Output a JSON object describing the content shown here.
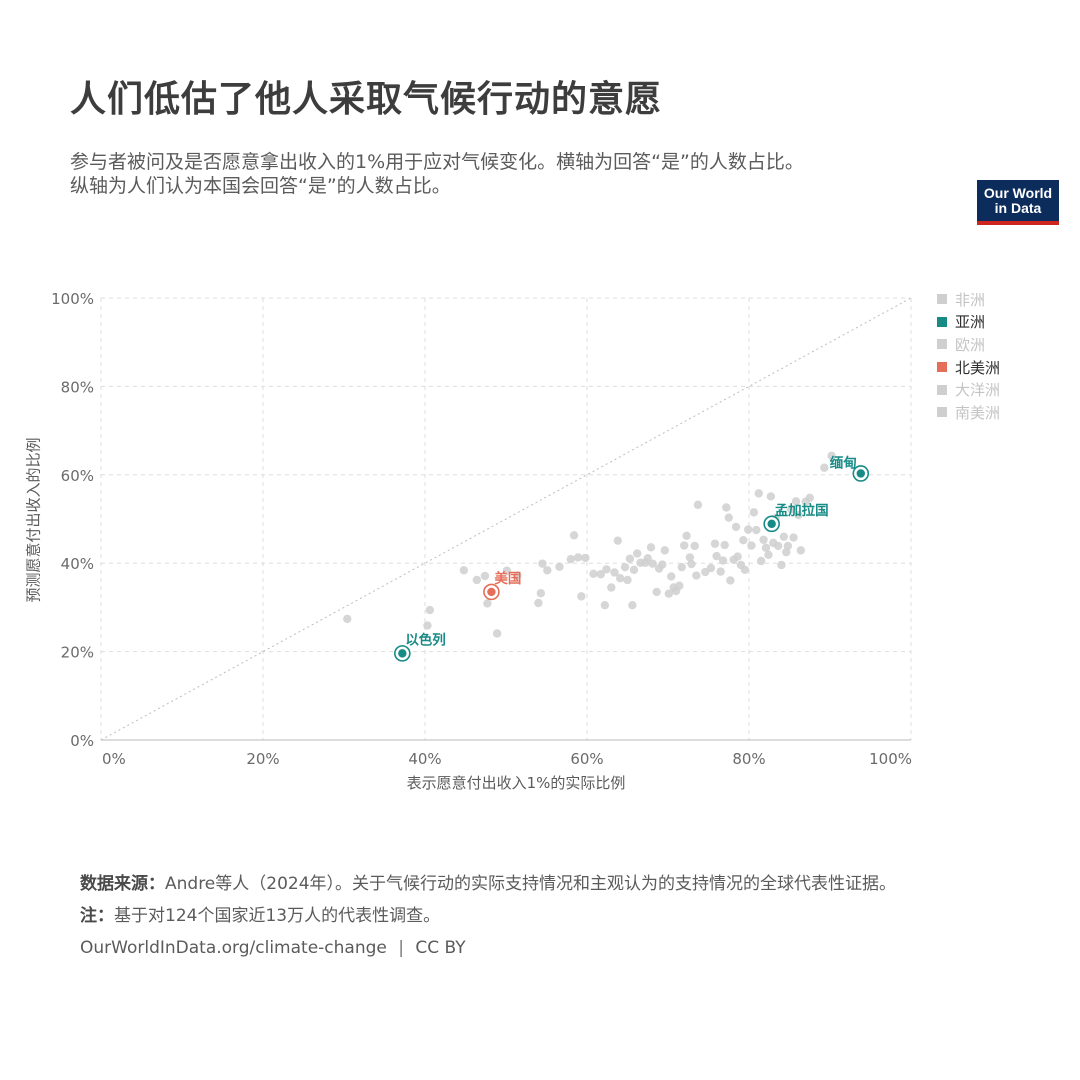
{
  "title": "人们低估了他人采取气候行动的意愿",
  "subtitle_line1": "参与者被问及是否愿意拿出收入的1%用于应对气候变化。横轴为回答“是”的人数占比。",
  "subtitle_line2": "纵轴为人们认为本国会回答“是”的人数占比。",
  "logo_line1": "Our World",
  "logo_line2": "in Data",
  "footer": {
    "source_label": "数据来源：",
    "source_text": "Andre等人（2024年）。关于气候行动的实际支持情况和主观认为的支持情况的全球代表性证据。",
    "note_label": "注：",
    "note_text": "基于对124个国家近13万人的代表性调查。",
    "url": "OurWorldInData.org/climate-change",
    "license": "CC BY",
    "separator": "|"
  },
  "colors": {
    "asia": "#178b86",
    "north_america": "#e56e5a",
    "other": "#cfcfcf"
  },
  "chart_data": {
    "type": "scatter",
    "xlabel": "表示愿意付出收入1%的实际比例",
    "ylabel": "预测愿意付出收入的比例",
    "xlim": [
      0,
      100
    ],
    "ylim": [
      0,
      100
    ],
    "x_ticks": [
      "0%",
      "20%",
      "40%",
      "60%",
      "80%",
      "100%"
    ],
    "y_ticks": [
      "0%",
      "20%",
      "40%",
      "60%",
      "80%",
      "100%"
    ],
    "grid": true,
    "reference_line": "y=x",
    "legend_position": "right",
    "legend": [
      {
        "label": "非洲",
        "color": "#cfcfcf",
        "active": false
      },
      {
        "label": "亚洲",
        "color": "#178b86",
        "active": true
      },
      {
        "label": "欧洲",
        "color": "#cfcfcf",
        "active": false
      },
      {
        "label": "北美洲",
        "color": "#e56e5a",
        "active": true
      },
      {
        "label": "大洋洲",
        "color": "#cfcfcf",
        "active": false
      },
      {
        "label": "南美洲",
        "color": "#cfcfcf",
        "active": false
      }
    ],
    "highlighted": [
      {
        "label": "缅甸",
        "x": 93.8,
        "y": 60.3,
        "group": "亚洲"
      },
      {
        "label": "孟加拉国",
        "x": 82.8,
        "y": 48.9,
        "group": "亚洲"
      },
      {
        "label": "美国",
        "x": 48.2,
        "y": 33.5,
        "group": "北美洲"
      },
      {
        "label": "以色列",
        "x": 37.2,
        "y": 19.6,
        "group": "亚洲"
      }
    ],
    "points": [
      [
        30.4,
        27.4
      ],
      [
        40.3,
        25.9
      ],
      [
        40.6,
        29.4
      ],
      [
        44.8,
        38.4
      ],
      [
        46.4,
        36.2
      ],
      [
        47.4,
        37.1
      ],
      [
        47.7,
        30.9
      ],
      [
        48.9,
        24.1
      ],
      [
        50.1,
        38.3
      ],
      [
        51.4,
        37.2
      ],
      [
        54.0,
        31.0
      ],
      [
        54.3,
        33.2
      ],
      [
        54.5,
        39.9
      ],
      [
        55.1,
        38.4
      ],
      [
        56.6,
        39.2
      ],
      [
        58.0,
        40.9
      ],
      [
        58.4,
        46.3
      ],
      [
        58.9,
        41.3
      ],
      [
        59.3,
        32.5
      ],
      [
        59.8,
        41.2
      ],
      [
        60.8,
        37.6
      ],
      [
        61.7,
        37.5
      ],
      [
        62.2,
        30.5
      ],
      [
        62.4,
        38.6
      ],
      [
        63.0,
        34.5
      ],
      [
        63.4,
        37.9
      ],
      [
        63.8,
        45.1
      ],
      [
        64.1,
        36.6
      ],
      [
        64.7,
        39.1
      ],
      [
        65.0,
        36.2
      ],
      [
        65.3,
        41.0
      ],
      [
        65.6,
        30.5
      ],
      [
        65.8,
        38.5
      ],
      [
        66.2,
        42.2
      ],
      [
        66.6,
        40.1
      ],
      [
        67.2,
        40.1
      ],
      [
        67.5,
        41.1
      ],
      [
        67.9,
        43.6
      ],
      [
        68.1,
        39.9
      ],
      [
        68.6,
        33.5
      ],
      [
        68.9,
        38.8
      ],
      [
        69.3,
        39.7
      ],
      [
        69.6,
        42.9
      ],
      [
        70.1,
        33.1
      ],
      [
        70.4,
        37.0
      ],
      [
        70.7,
        34.5
      ],
      [
        71.0,
        33.7
      ],
      [
        71.4,
        34.9
      ],
      [
        71.7,
        39.1
      ],
      [
        72.0,
        44.0
      ],
      [
        72.3,
        46.2
      ],
      [
        72.7,
        41.3
      ],
      [
        72.9,
        39.8
      ],
      [
        73.3,
        43.9
      ],
      [
        73.5,
        37.2
      ],
      [
        73.7,
        53.2
      ],
      [
        74.6,
        38.0
      ],
      [
        75.3,
        38.9
      ],
      [
        75.8,
        44.4
      ],
      [
        76.0,
        41.6
      ],
      [
        76.5,
        38.1
      ],
      [
        76.8,
        40.6
      ],
      [
        77.0,
        44.1
      ],
      [
        77.2,
        52.6
      ],
      [
        77.5,
        50.3
      ],
      [
        77.7,
        36.1
      ],
      [
        78.1,
        40.8
      ],
      [
        78.4,
        48.2
      ],
      [
        78.6,
        41.5
      ],
      [
        79.0,
        39.6
      ],
      [
        79.3,
        45.2
      ],
      [
        79.5,
        38.5
      ],
      [
        79.9,
        47.6
      ],
      [
        80.3,
        44.0
      ],
      [
        80.6,
        51.5
      ],
      [
        80.9,
        47.5
      ],
      [
        81.2,
        55.8
      ],
      [
        81.5,
        40.5
      ],
      [
        81.8,
        45.3
      ],
      [
        82.1,
        43.5
      ],
      [
        82.4,
        41.9
      ],
      [
        82.7,
        55.1
      ],
      [
        83.0,
        44.6
      ],
      [
        83.3,
        50.2
      ],
      [
        83.6,
        43.9
      ],
      [
        84.0,
        39.6
      ],
      [
        84.3,
        46.0
      ],
      [
        84.6,
        42.5
      ],
      [
        84.8,
        43.9
      ],
      [
        85.2,
        52.2
      ],
      [
        85.5,
        45.8
      ],
      [
        85.8,
        54.0
      ],
      [
        86.1,
        50.9
      ],
      [
        86.4,
        42.9
      ],
      [
        87.0,
        53.9
      ],
      [
        87.5,
        54.8
      ],
      [
        89.3,
        61.6
      ],
      [
        90.2,
        64.3
      ]
    ]
  }
}
